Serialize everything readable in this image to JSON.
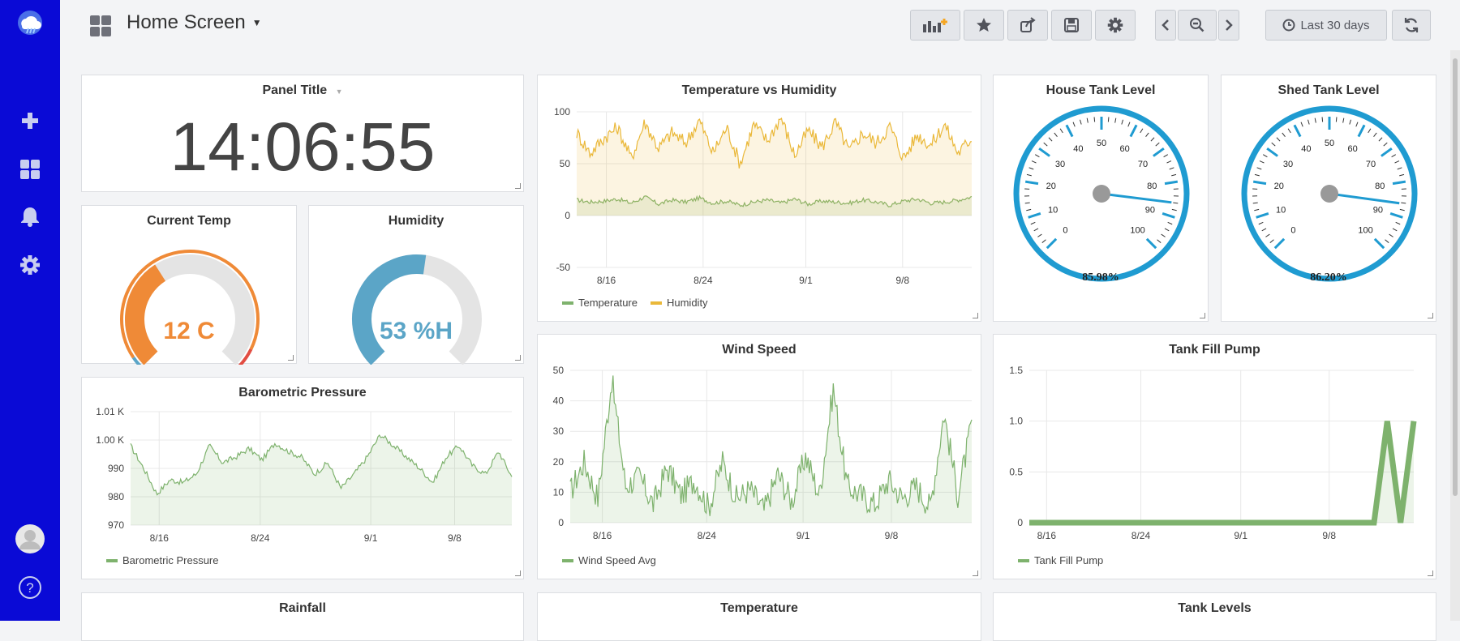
{
  "sidebar": {
    "items": [
      {
        "name": "logo",
        "icon": "cloud-logo-icon"
      },
      {
        "name": "create",
        "icon": "plus-icon"
      },
      {
        "name": "dashboards",
        "icon": "grid-icon"
      },
      {
        "name": "alerting",
        "icon": "bell-icon"
      },
      {
        "name": "configuration",
        "icon": "gear-icon"
      },
      {
        "name": "profile",
        "icon": "avatar-icon"
      },
      {
        "name": "help",
        "icon": "help-icon",
        "label": "?"
      }
    ]
  },
  "header": {
    "title": "Home Screen",
    "time_range": "Last 30 days",
    "buttons": [
      "add-panel-icon",
      "star-icon",
      "share-icon",
      "save-icon",
      "settings-icon",
      "chevron-left-icon",
      "zoom-out-icon",
      "chevron-right-icon",
      "clock-icon",
      "refresh-icon"
    ]
  },
  "panels": {
    "clock": {
      "title": "Panel Title",
      "value": "14:06:55"
    },
    "current_temp": {
      "title": "Current Temp",
      "value": "12 C",
      "fraction": 0.38,
      "color": "#ef8a37"
    },
    "humidity": {
      "title": "Humidity",
      "value": "53 %H",
      "fraction": 0.53,
      "color": "#5ba5c7"
    },
    "temp_humidity": {
      "title": "Temperature vs Humidity",
      "legend": [
        "Temperature",
        "Humidity"
      ]
    },
    "house_tank": {
      "title": "House Tank Level",
      "value": "85.98%"
    },
    "shed_tank": {
      "title": "Shed Tank Level",
      "value": "86.20%"
    },
    "barometric": {
      "title": "Barometric Pressure",
      "legend": [
        "Barometric Pressure"
      ]
    },
    "wind": {
      "title": "Wind Speed",
      "legend": [
        "Wind Speed Avg"
      ]
    },
    "pump": {
      "title": "Tank Fill Pump",
      "legend": [
        "Tank Fill Pump"
      ]
    },
    "rainfall": {
      "title": "Rainfall"
    },
    "temperature": {
      "title": "Temperature"
    },
    "tank_levels": {
      "title": "Tank Levels"
    }
  },
  "colors": {
    "green": "#7eb26d",
    "yellow": "#eab839",
    "blue": "#1f9bd1",
    "orange": "#ef8a37",
    "red": "#e24d42",
    "teal": "#5ba5c7"
  },
  "chart_data": [
    {
      "type": "line",
      "name": "Temperature vs Humidity",
      "x_ticks": [
        "8/16",
        "8/24",
        "9/1",
        "9/8"
      ],
      "y_ticks": [
        "100",
        "50",
        "0",
        "-50"
      ],
      "ylim": [
        -50,
        100
      ],
      "series": [
        {
          "name": "Temperature",
          "values": [
            15,
            13,
            14,
            16,
            12,
            18,
            11,
            15,
            13,
            17,
            12,
            14,
            10,
            13,
            15,
            12,
            16,
            11,
            14,
            13,
            12,
            15,
            13,
            10,
            14,
            16,
            12,
            13,
            15,
            18
          ],
          "color": "#7eb26d"
        },
        {
          "name": "Humidity",
          "values": [
            80,
            60,
            75,
            85,
            55,
            90,
            65,
            80,
            70,
            92,
            60,
            85,
            50,
            88,
            72,
            95,
            58,
            82,
            66,
            90,
            62,
            80,
            70,
            86,
            55,
            78,
            68,
            88,
            60,
            75
          ],
          "color": "#eab839"
        }
      ]
    },
    {
      "type": "gauge",
      "name": "House Tank Level",
      "min": 0,
      "max": 100,
      "value": 85.98,
      "ticks": [
        "0",
        "10",
        "20",
        "30",
        "40",
        "50",
        "60",
        "70",
        "80",
        "90",
        "100"
      ]
    },
    {
      "type": "gauge",
      "name": "Shed Tank Level",
      "min": 0,
      "max": 100,
      "value": 86.2,
      "ticks": [
        "0",
        "10",
        "20",
        "30",
        "40",
        "50",
        "60",
        "70",
        "80",
        "90",
        "100"
      ]
    },
    {
      "type": "area",
      "name": "Barometric Pressure",
      "x_ticks": [
        "8/16",
        "8/24",
        "9/1",
        "9/8"
      ],
      "y_ticks": [
        "1.01 K",
        "1.00 K",
        "990",
        "980",
        "970"
      ],
      "ylim": [
        970,
        1010
      ],
      "series": [
        {
          "name": "Barometric Pressure",
          "values": [
            998,
            990,
            981,
            986,
            985,
            988,
            998,
            992,
            994,
            997,
            993,
            999,
            996,
            994,
            988,
            992,
            983,
            988,
            994,
            1002,
            998,
            994,
            990,
            985,
            994,
            998,
            991,
            988,
            996,
            987
          ],
          "color": "#7eb26d"
        }
      ]
    },
    {
      "type": "area",
      "name": "Wind Speed",
      "x_ticks": [
        "8/16",
        "8/24",
        "9/1",
        "9/8"
      ],
      "y_ticks": [
        "50",
        "40",
        "30",
        "20",
        "10",
        "0"
      ],
      "ylim": [
        0,
        50
      ],
      "series": [
        {
          "name": "Wind Speed Avg",
          "values": [
            10,
            20,
            8,
            47,
            12,
            15,
            6,
            18,
            9,
            14,
            5,
            20,
            8,
            11,
            4,
            16,
            7,
            22,
            9,
            44,
            12,
            9,
            6,
            14,
            8,
            12,
            5,
            36,
            9,
            32
          ],
          "color": "#7eb26d"
        }
      ]
    },
    {
      "type": "area",
      "name": "Tank Fill Pump",
      "x_ticks": [
        "8/16",
        "8/24",
        "9/1",
        "9/8"
      ],
      "y_ticks": [
        "1.5",
        "1.0",
        "0.5",
        "0"
      ],
      "ylim": [
        0,
        1.5
      ],
      "series": [
        {
          "name": "Tank Fill Pump",
          "values": [
            0,
            0,
            0,
            0,
            0,
            0,
            0,
            0,
            0,
            0,
            0,
            0,
            0,
            0,
            0,
            0,
            0,
            0,
            0,
            0,
            0,
            0,
            0,
            0,
            0,
            0,
            0,
            1,
            0,
            1
          ],
          "color": "#7eb26d"
        }
      ]
    }
  ]
}
